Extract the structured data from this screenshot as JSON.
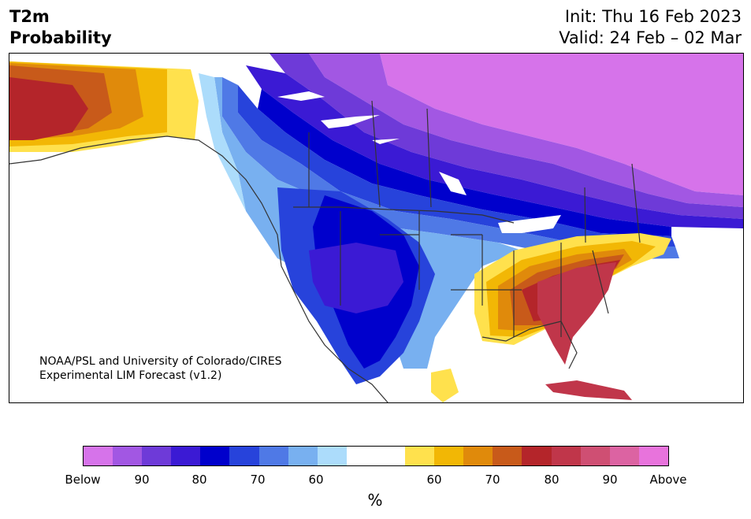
{
  "header": {
    "title_line1": "T2m",
    "title_line2": "Probability",
    "init": "Init: Thu 16 Feb 2023",
    "valid": "Valid: 24 Feb – 02 Mar"
  },
  "map": {
    "credit_line1": "NOAA/PSL and University of Colorado/CIRES",
    "credit_line2": "Experimental LIM Forecast (v1.2)"
  },
  "colorbar": {
    "colors": [
      "#d673ea",
      "#a257e3",
      "#6e3ad8",
      "#3b1ad4",
      "#0000cc",
      "#2743db",
      "#4f79e6",
      "#78b0f0",
      "#acdcfb",
      "#ffffff",
      "#ffffff",
      "#ffe14d",
      "#f2b705",
      "#e08a0b",
      "#c85a1a",
      "#b4252a",
      "#c0364a",
      "#cf4f73",
      "#dc63a2",
      "#e873dc"
    ],
    "ticks": [
      {
        "label": "Below"
      },
      {
        "label": "90"
      },
      {
        "label": "80"
      },
      {
        "label": "70"
      },
      {
        "label": "60"
      },
      {
        "label": "60"
      },
      {
        "label": "70"
      },
      {
        "label": "80"
      },
      {
        "label": "90"
      },
      {
        "label": "Above"
      }
    ],
    "unit": "%"
  }
}
